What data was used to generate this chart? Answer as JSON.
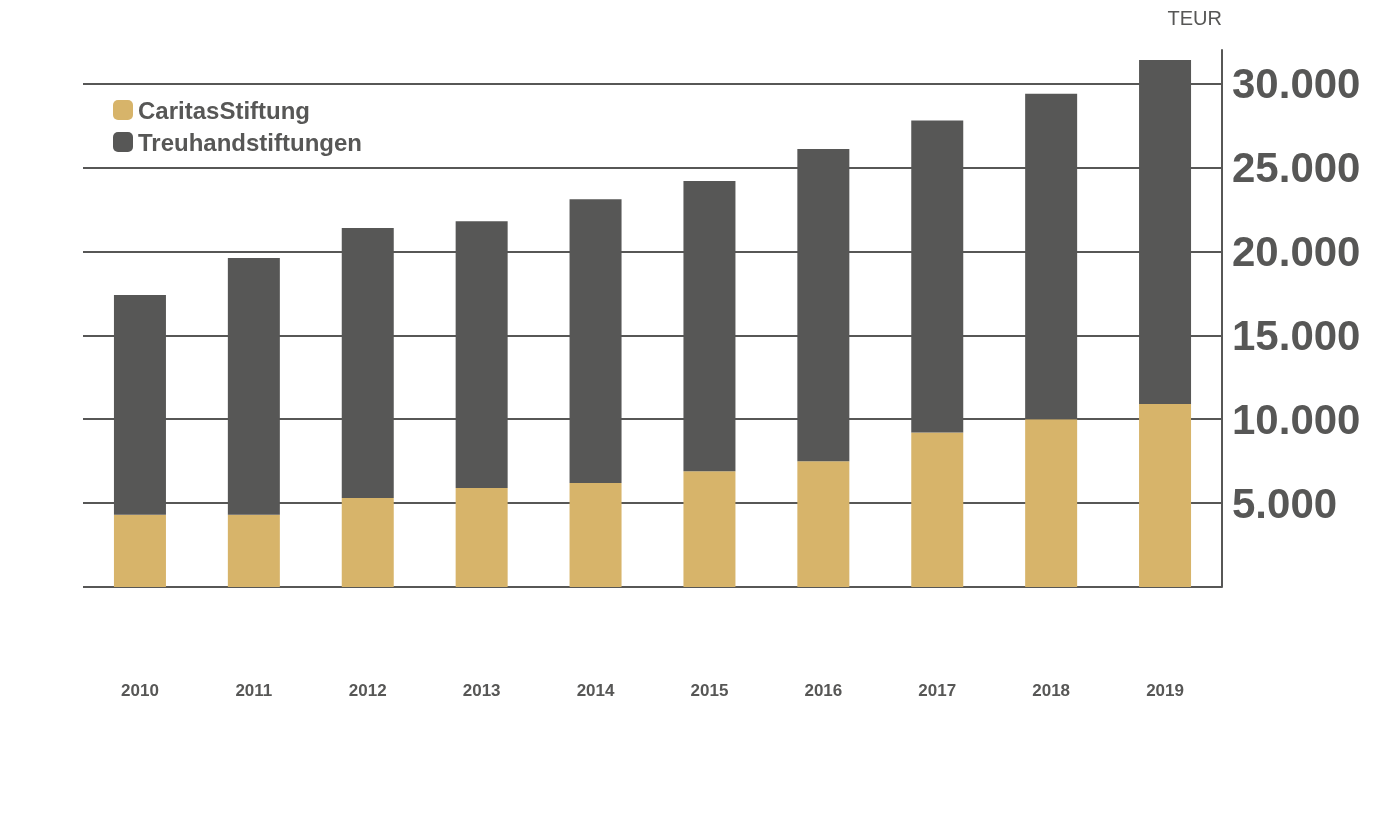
{
  "chart_data": {
    "type": "bar",
    "stacked": true,
    "ylabel": "TEUR",
    "categories": [
      "2010",
      "2011",
      "2012",
      "2013",
      "2014",
      "2015",
      "2016",
      "2017",
      "2018",
      "2019"
    ],
    "series": [
      {
        "name": "CaritasStiftung",
        "color": "#d7b46a",
        "values": [
          4300,
          4300,
          5300,
          5900,
          6200,
          6900,
          7500,
          9200,
          10000,
          10900
        ]
      },
      {
        "name": "Treuhandstiftungen",
        "color": "#575756",
        "values": [
          13100,
          15300,
          16100,
          15900,
          16900,
          17300,
          18600,
          18600,
          19400,
          20500
        ]
      }
    ],
    "ylim": [
      0,
      32000
    ],
    "yticks": [
      {
        "value": 0,
        "label": null
      },
      {
        "value": 5000,
        "label": "5.000"
      },
      {
        "value": 10000,
        "label": "10.000"
      },
      {
        "value": 15000,
        "label": "15.000"
      },
      {
        "value": 20000,
        "label": "20.000"
      },
      {
        "value": 25000,
        "label": "25.000"
      },
      {
        "value": 30000,
        "label": "30.000"
      }
    ],
    "grid": "y",
    "legend": "top left"
  }
}
